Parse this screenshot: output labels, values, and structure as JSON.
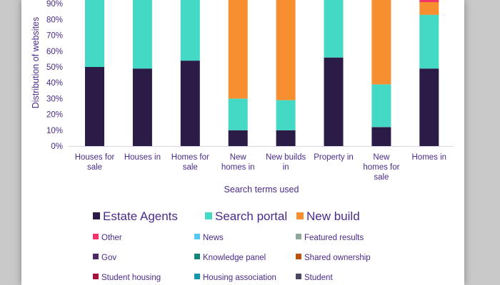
{
  "chart_data": {
    "type": "bar",
    "stacked": true,
    "title": "",
    "xlabel": "Search terms used",
    "ylabel": "Distribution of websites",
    "ylim": [
      0,
      100
    ],
    "y_ticks": [
      "0%",
      "10%",
      "20%",
      "30%",
      "40%",
      "50%",
      "60%",
      "70%",
      "80%",
      "90%"
    ],
    "grid": false,
    "legend_position": "bottom",
    "categories": [
      [
        "Houses for",
        "sale"
      ],
      [
        "Houses in"
      ],
      [
        "Homes for",
        "sale"
      ],
      [
        "New",
        "homes in"
      ],
      [
        "New builds",
        "in"
      ],
      [
        "Property in"
      ],
      [
        "New",
        "homes for",
        "sale"
      ],
      [
        "Homes in"
      ]
    ],
    "series": [
      {
        "name": "Estate Agents",
        "color": "#2a1b47",
        "values": [
          50,
          49,
          54,
          10,
          10,
          56,
          12,
          49
        ]
      },
      {
        "name": "Search portal",
        "color": "#44d9c4",
        "values": [
          50,
          51,
          46,
          20,
          19,
          44,
          27,
          34
        ]
      },
      {
        "name": "New build",
        "color": "#f78f31",
        "values": [
          0,
          0,
          0,
          70,
          71,
          0,
          61,
          8
        ]
      },
      {
        "name": "Other",
        "color": "#f0356a",
        "values": [
          0,
          0,
          0,
          0,
          0,
          0,
          0,
          9
        ]
      },
      {
        "name": "News",
        "color": "#58c8f0",
        "values": [
          0,
          0,
          0,
          0,
          0,
          0,
          0,
          0
        ]
      },
      {
        "name": "Featured results",
        "color": "#8fa89e",
        "values": [
          0,
          0,
          0,
          0,
          0,
          0,
          0,
          0
        ]
      },
      {
        "name": "Gov",
        "color": "#4b2a63",
        "values": [
          0,
          0,
          0,
          0,
          0,
          0,
          0,
          0
        ]
      },
      {
        "name": "Knowledge panel",
        "color": "#17867a",
        "values": [
          0,
          0,
          0,
          0,
          0,
          0,
          0,
          0
        ]
      },
      {
        "name": "Shared ownership",
        "color": "#b8520e",
        "values": [
          0,
          0,
          0,
          0,
          0,
          0,
          0,
          0
        ]
      },
      {
        "name": "Student housing",
        "color": "#a3133f",
        "values": [
          0,
          0,
          0,
          0,
          0,
          0,
          0,
          0
        ]
      },
      {
        "name": "Housing association",
        "color": "#1597a8",
        "values": [
          0,
          0,
          0,
          0,
          0,
          0,
          0,
          0
        ]
      },
      {
        "name": "Student",
        "color": "#4a4560",
        "values": [
          0,
          0,
          0,
          0,
          0,
          0,
          0,
          0
        ]
      }
    ]
  }
}
